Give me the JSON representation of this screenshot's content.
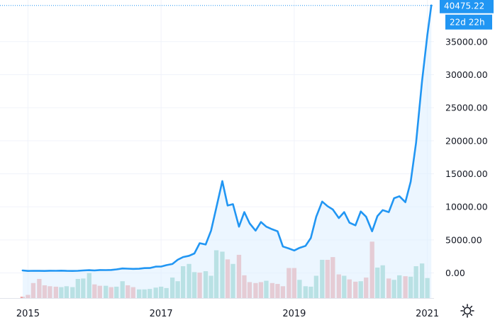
{
  "chart_data": {
    "type": "line",
    "title": "",
    "xlabel": "",
    "ylabel": "",
    "x_tick_labels": [
      "2015",
      "2017",
      "2019",
      "2021"
    ],
    "y_tick_labels": [
      "0.00",
      "5000.00",
      "10000.00",
      "15000.00",
      "20000.00",
      "25000.00",
      "30000.00",
      "35000.00"
    ],
    "y_ticks": [
      0,
      5000,
      10000,
      15000,
      20000,
      25000,
      30000,
      35000
    ],
    "ylim": [
      -3800,
      41300
    ],
    "xlim": [
      2014.58,
      2021.1
    ],
    "grid": true,
    "last_price": {
      "label": "40475.22",
      "value": 40475.22
    },
    "countdown": "22d 22h",
    "colors": {
      "line": "#2196f3",
      "area_fill": "#ddeeff",
      "volume_up": "#8fd0c4",
      "volume_down": "#efa2a2",
      "label_bg": "#2196f3",
      "grid": "#f0f3fa",
      "axis_text": "#131722"
    },
    "price_series": {
      "name": "",
      "x": [
        2014.92,
        2015.0,
        2015.08,
        2015.17,
        2015.25,
        2015.33,
        2015.42,
        2015.5,
        2015.58,
        2015.67,
        2015.75,
        2015.83,
        2015.92,
        2016.0,
        2016.08,
        2016.17,
        2016.25,
        2016.33,
        2016.42,
        2016.5,
        2016.58,
        2016.67,
        2016.75,
        2016.83,
        2016.92,
        2017.0,
        2017.08,
        2017.17,
        2017.25,
        2017.33,
        2017.42,
        2017.5,
        2017.58,
        2017.67,
        2017.75,
        2017.83,
        2017.92,
        2018.0,
        2018.08,
        2018.17,
        2018.25,
        2018.33,
        2018.42,
        2018.5,
        2018.58,
        2018.67,
        2018.75,
        2018.83,
        2018.92,
        2019.0,
        2019.08,
        2019.17,
        2019.25,
        2019.33,
        2019.42,
        2019.5,
        2019.58,
        2019.67,
        2019.75,
        2019.83,
        2019.92,
        2020.0,
        2020.08,
        2020.17,
        2020.25,
        2020.33,
        2020.42,
        2020.5,
        2020.58,
        2020.67,
        2020.75,
        2020.83,
        2020.92,
        2021.0,
        2021.06
      ],
      "y": [
        380,
        300,
        320,
        310,
        300,
        330,
        320,
        350,
        310,
        300,
        320,
        380,
        420,
        380,
        440,
        430,
        450,
        540,
        680,
        650,
        610,
        640,
        730,
        740,
        960,
        970,
        1180,
        1350,
        2000,
        2400,
        2600,
        2950,
        4500,
        4300,
        6400,
        9900,
        13900,
        10200,
        10400,
        7000,
        9200,
        7500,
        6400,
        7700,
        7000,
        6600,
        6300,
        4000,
        3700,
        3400,
        3800,
        4100,
        5300,
        8500,
        10800,
        10100,
        9600,
        8300,
        9200,
        7600,
        7200,
        9300,
        8500,
        6300,
        8600,
        9500,
        9200,
        11300,
        11600,
        10700,
        13800,
        19700,
        29000,
        36000,
        40475.22
      ]
    },
    "volume_series": {
      "name": "",
      "x": [
        2014.92,
        2015.0,
        2015.08,
        2015.17,
        2015.25,
        2015.33,
        2015.42,
        2015.5,
        2015.58,
        2015.67,
        2015.75,
        2015.83,
        2015.92,
        2016.0,
        2016.08,
        2016.17,
        2016.25,
        2016.33,
        2016.42,
        2016.5,
        2016.58,
        2016.67,
        2016.75,
        2016.83,
        2016.92,
        2017.0,
        2017.08,
        2017.17,
        2017.25,
        2017.33,
        2017.42,
        2017.5,
        2017.58,
        2017.67,
        2017.75,
        2017.83,
        2017.92,
        2018.0,
        2018.08,
        2018.17,
        2018.25,
        2018.33,
        2018.42,
        2018.5,
        2018.58,
        2018.67,
        2018.75,
        2018.83,
        2018.92,
        2019.0,
        2019.08,
        2019.17,
        2019.25,
        2019.33,
        2019.42,
        2019.5,
        2019.58,
        2019.67,
        2019.75,
        2019.83,
        2019.92,
        2020.0,
        2020.08,
        2020.17,
        2020.25,
        2020.33,
        2020.42,
        2020.5,
        2020.58,
        2020.67,
        2020.75,
        2020.83,
        2020.92,
        2021.0,
        2021.06
      ],
      "values": [
        0.3,
        0.7,
        3.3,
        4.2,
        2.8,
        2.6,
        2.5,
        2.4,
        2.6,
        2.4,
        4.2,
        4.3,
        5.5,
        3.0,
        2.7,
        2.7,
        2.4,
        2.5,
        3.7,
        2.8,
        2.4,
        1.9,
        1.9,
        2.0,
        2.3,
        2.5,
        2.2,
        4.5,
        3.7,
        7.0,
        7.5,
        5.7,
        5.6,
        5.9,
        4.9,
        10.5,
        10.2,
        8.5,
        7.5,
        9.5,
        5.0,
        3.5,
        3.3,
        3.5,
        3.8,
        3.3,
        3.1,
        2.6,
        6.6,
        6.6,
        4.0,
        2.6,
        2.5,
        4.9,
        8.4,
        8.4,
        9.0,
        5.2,
        4.9,
        4.1,
        3.6,
        3.7,
        4.5,
        12.4,
        6.7,
        7.2,
        4.3,
        4.0,
        5.0,
        4.8,
        4.7,
        7.0,
        7.6,
        4.4,
        0
      ],
      "directions": [
        "down",
        "down",
        "down",
        "down",
        "down",
        "down",
        "down",
        "up",
        "up",
        "up",
        "up",
        "up",
        "up",
        "down",
        "down",
        "up",
        "down",
        "up",
        "up",
        "down",
        "down",
        "up",
        "up",
        "up",
        "up",
        "up",
        "up",
        "up",
        "up",
        "up",
        "up",
        "up",
        "down",
        "up",
        "up",
        "up",
        "up",
        "down",
        "up",
        "down",
        "down",
        "down",
        "down",
        "down",
        "up",
        "down",
        "down",
        "down",
        "down",
        "down",
        "up",
        "up",
        "up",
        "up",
        "up",
        "down",
        "down",
        "down",
        "up",
        "down",
        "down",
        "up",
        "down",
        "down",
        "up",
        "up",
        "down",
        "up",
        "up",
        "down",
        "up",
        "up",
        "up",
        "up",
        "up"
      ]
    },
    "volume_ylim": [
      0,
      14
    ]
  },
  "toolbar": {
    "settings_icon": "gear-icon"
  }
}
